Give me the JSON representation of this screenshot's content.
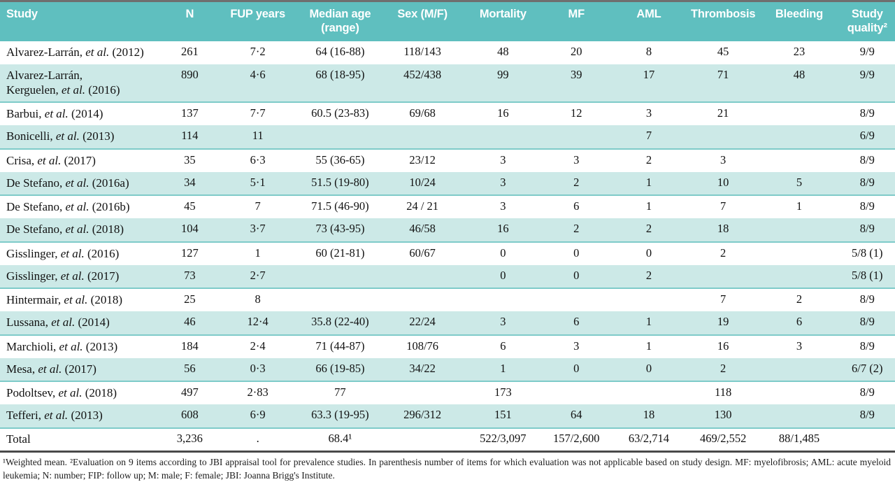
{
  "colors": {
    "header_bg": "#5FBFBF",
    "header_text": "#FFFFFF",
    "light_row": "#CCE9E7",
    "divider": "#7ECBC9",
    "top_border": "#6F6F6F",
    "bottom_border": "#4A4A4A",
    "text": "#111111"
  },
  "table": {
    "columns": [
      "Study",
      "N",
      "FUP years",
      "Median age (range)",
      "Sex (M/F)",
      "Mortality",
      "MF",
      "AML",
      "Thrombosis",
      "Bleeding",
      "Study quality²"
    ],
    "column_keys": [
      "n",
      "fup-years",
      "median-age",
      "sex",
      "mortality",
      "mf",
      "aml",
      "thrombosis",
      "bleeding",
      "study-quality"
    ],
    "rows": [
      {
        "pre": "Alvarez-Larrán,",
        "etal": "et al.",
        "year": "(2012)",
        "cells": [
          "261",
          "7·2",
          "64 (16-88)",
          "118/143",
          "48",
          "20",
          "8",
          "45",
          "23",
          "9/9"
        ]
      },
      {
        "pre": "Alvarez-Larrán,\nKerguelen,",
        "etal": "et al.",
        "year": "(2016)",
        "cells": [
          "890",
          "4·6",
          "68 (18-95)",
          "452/438",
          "99",
          "39",
          "17",
          "71",
          "48",
          "9/9"
        ]
      },
      {
        "pre": "Barbui,",
        "etal": "et al.",
        "year": "(2014)",
        "cells": [
          "137",
          "7·7",
          "60.5 (23-83)",
          "69/68",
          "16",
          "12",
          "3",
          "21",
          "",
          "8/9"
        ]
      },
      {
        "pre": "Bonicelli,",
        "etal": "et al.",
        "year": "(2013)",
        "cells": [
          "114",
          "11",
          "",
          "",
          "",
          "",
          "7",
          "",
          "",
          "6/9"
        ]
      },
      {
        "pre": "Crisa,",
        "etal": "et al.",
        "year": "(2017)",
        "cells": [
          "35",
          "6·3",
          "55 (36-65)",
          "23/12",
          "3",
          "3",
          "2",
          "3",
          "",
          "8/9"
        ]
      },
      {
        "pre": "De Stefano,",
        "etal": "et al.",
        "year": "(2016a)",
        "cells": [
          "34",
          "5·1",
          "51.5 (19-80)",
          "10/24",
          "3",
          "2",
          "1",
          "10",
          "5",
          "8/9"
        ]
      },
      {
        "pre": "De Stefano,",
        "etal": "et al.",
        "year": "(2016b)",
        "cells": [
          "45",
          "7",
          "71.5 (46-90)",
          "24 / 21",
          "3",
          "6",
          "1",
          "7",
          "1",
          "8/9"
        ]
      },
      {
        "pre": "De Stefano,",
        "etal": "et al.",
        "year": "(2018)",
        "cells": [
          "104",
          "3·7",
          "73 (43-95)",
          "46/58",
          "16",
          "2",
          "2",
          "18",
          "",
          "8/9"
        ]
      },
      {
        "pre": "Gisslinger,",
        "etal": "et al.",
        "year": "(2016)",
        "cells": [
          "127",
          "1",
          "60 (21-81)",
          "60/67",
          "0",
          "0",
          "0",
          "2",
          "",
          "5/8 (1)"
        ]
      },
      {
        "pre": "Gisslinger,",
        "etal": "et al.",
        "year": "(2017)",
        "cells": [
          "73",
          "2·7",
          "",
          "",
          "0",
          "0",
          "2",
          "",
          "",
          "5/8 (1)"
        ]
      },
      {
        "pre": "Hintermair,",
        "etal": "et al.",
        "year": "(2018)",
        "cells": [
          "25",
          "8",
          "",
          "",
          "",
          "",
          "",
          "7",
          "2",
          "8/9"
        ]
      },
      {
        "pre": "Lussana,",
        "etal": "et al.",
        "year": "(2014)",
        "cells": [
          "46",
          "12·4",
          "35.8 (22-40)",
          "22/24",
          "3",
          "6",
          "1",
          "19",
          "6",
          "8/9"
        ]
      },
      {
        "pre": "Marchioli,",
        "etal": "et al.",
        "year": "(2013)",
        "cells": [
          "184",
          "2·4",
          "71 (44-87)",
          "108/76",
          "6",
          "3",
          "1",
          "16",
          "3",
          "8/9"
        ]
      },
      {
        "pre": "Mesa,",
        "etal": "et al.",
        "year": "(2017)",
        "cells": [
          "56",
          "0·3",
          "66 (19-85)",
          "34/22",
          "1",
          "0",
          "0",
          "2",
          "",
          "6/7 (2)"
        ]
      },
      {
        "pre": "Podoltsev,",
        "etal": "et al.",
        "year": "(2018)",
        "cells": [
          "497",
          "2·83",
          "77",
          "",
          "173",
          "",
          "",
          "118",
          "",
          "8/9"
        ]
      },
      {
        "pre": "Tefferi,",
        "etal": "et al.",
        "year": "(2013)",
        "cells": [
          "608",
          "6·9",
          "63.3 (19-95)",
          "296/312",
          "151",
          "64",
          "18",
          "130",
          "",
          "8/9"
        ]
      }
    ],
    "total": {
      "label": "Total",
      "cells": [
        "3,236",
        ".",
        "68.4¹",
        "",
        "522/3,097",
        "157/2,600",
        "63/2,714",
        "469/2,552",
        "88/1,485",
        ""
      ]
    }
  },
  "footnote": "¹Weighted mean. ²Evaluation on 9 items according to JBI appraisal tool for prevalence studies. In parenthesis number of items for which evaluation was not applicable based on study design. MF: myelofibrosis; AML: acute myeloid leukemia; N: number; FIP: follow up; M: male; F: female; JBI: Joanna Brigg's Institute."
}
